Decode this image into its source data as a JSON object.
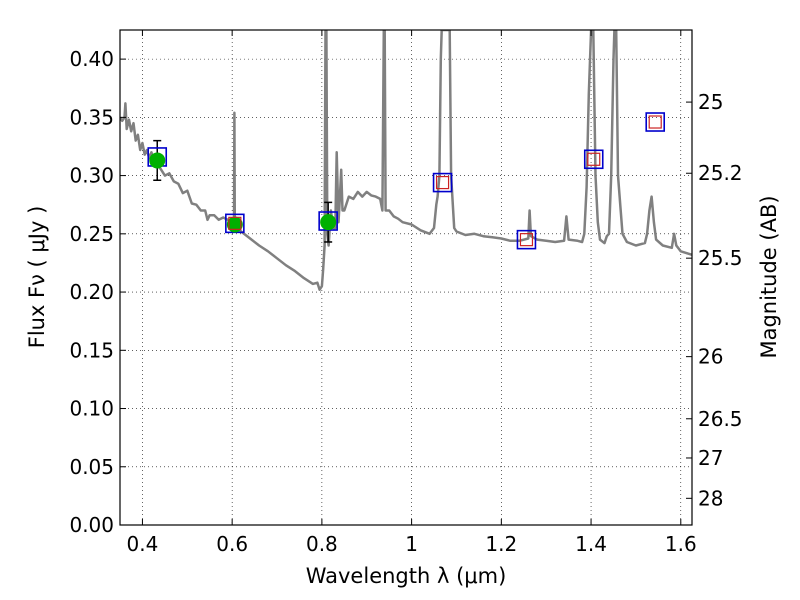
{
  "chart_data": {
    "type": "scatter",
    "xlabel": "Wavelength  λ (μm)",
    "ylabel": "Flux  Fν  ( μJy )",
    "y2label": "Magnitude (AB)",
    "xlim": [
      0.35,
      1.625
    ],
    "ylim": [
      0.0,
      0.425
    ],
    "grid": true,
    "x_ticks": [
      0.4,
      0.6,
      0.8,
      1.0,
      1.2,
      1.4,
      1.6
    ],
    "x_tick_labels": [
      "0.4",
      "0.6",
      "0.8",
      "1",
      "1.2",
      "1.4",
      "1.6"
    ],
    "y_ticks": [
      0.0,
      0.05,
      0.1,
      0.15,
      0.2,
      0.25,
      0.3,
      0.35,
      0.4
    ],
    "y_tick_labels": [
      "0.00",
      "0.05",
      "0.10",
      "0.15",
      "0.20",
      "0.25",
      "0.30",
      "0.35",
      "0.40"
    ],
    "mag_ticks": [
      25,
      25.2,
      25.5,
      26,
      26.5,
      27,
      28
    ],
    "mag_tick_labels": [
      "25",
      "25.2",
      "25.5",
      "26",
      "26.5",
      "27",
      "28"
    ],
    "colors": {
      "model": "#808080",
      "observed": "#00b000",
      "model_box": "#0000cc",
      "synthetic": "#cc2222"
    },
    "model_sed": [
      [
        0.35,
        0.35
      ],
      [
        0.355,
        0.347
      ],
      [
        0.36,
        0.35
      ],
      [
        0.362,
        0.362
      ],
      [
        0.365,
        0.34
      ],
      [
        0.37,
        0.348
      ],
      [
        0.375,
        0.338
      ],
      [
        0.38,
        0.345
      ],
      [
        0.385,
        0.33
      ],
      [
        0.39,
        0.335
      ],
      [
        0.395,
        0.322
      ],
      [
        0.4,
        0.328
      ],
      [
        0.405,
        0.318
      ],
      [
        0.41,
        0.322
      ],
      [
        0.415,
        0.315
      ],
      [
        0.42,
        0.32
      ],
      [
        0.43,
        0.31
      ],
      [
        0.44,
        0.306
      ],
      [
        0.45,
        0.3
      ],
      [
        0.46,
        0.302
      ],
      [
        0.47,
        0.295
      ],
      [
        0.48,
        0.293
      ],
      [
        0.49,
        0.285
      ],
      [
        0.5,
        0.287
      ],
      [
        0.51,
        0.276
      ],
      [
        0.52,
        0.275
      ],
      [
        0.53,
        0.27
      ],
      [
        0.54,
        0.27
      ],
      [
        0.545,
        0.262
      ],
      [
        0.55,
        0.266
      ],
      [
        0.56,
        0.266
      ],
      [
        0.57,
        0.262
      ],
      [
        0.58,
        0.264
      ],
      [
        0.59,
        0.262
      ],
      [
        0.6,
        0.26
      ],
      [
        0.604,
        0.258
      ],
      [
        0.605,
        0.354
      ],
      [
        0.606,
        0.258
      ],
      [
        0.61,
        0.256
      ],
      [
        0.62,
        0.252
      ],
      [
        0.64,
        0.246
      ],
      [
        0.66,
        0.24
      ],
      [
        0.68,
        0.235
      ],
      [
        0.7,
        0.229
      ],
      [
        0.72,
        0.223
      ],
      [
        0.74,
        0.218
      ],
      [
        0.76,
        0.212
      ],
      [
        0.78,
        0.207
      ],
      [
        0.79,
        0.208
      ],
      [
        0.795,
        0.202
      ],
      [
        0.8,
        0.205
      ],
      [
        0.803,
        0.22
      ],
      [
        0.806,
        0.24
      ],
      [
        0.808,
        0.425
      ],
      [
        0.81,
        0.425
      ],
      [
        0.812,
        0.25
      ],
      [
        0.815,
        0.24
      ],
      [
        0.82,
        0.27
      ],
      [
        0.825,
        0.255
      ],
      [
        0.83,
        0.255
      ],
      [
        0.833,
        0.32
      ],
      [
        0.837,
        0.26
      ],
      [
        0.84,
        0.28
      ],
      [
        0.843,
        0.305
      ],
      [
        0.846,
        0.27
      ],
      [
        0.85,
        0.27
      ],
      [
        0.86,
        0.282
      ],
      [
        0.87,
        0.28
      ],
      [
        0.88,
        0.286
      ],
      [
        0.89,
        0.282
      ],
      [
        0.9,
        0.286
      ],
      [
        0.91,
        0.283
      ],
      [
        0.92,
        0.282
      ],
      [
        0.93,
        0.28
      ],
      [
        0.935,
        0.27
      ],
      [
        0.938,
        0.425
      ],
      [
        0.94,
        0.425
      ],
      [
        0.942,
        0.27
      ],
      [
        0.95,
        0.27
      ],
      [
        0.96,
        0.265
      ],
      [
        0.97,
        0.263
      ],
      [
        0.98,
        0.26
      ],
      [
        1.0,
        0.258
      ],
      [
        1.02,
        0.253
      ],
      [
        1.04,
        0.25
      ],
      [
        1.05,
        0.255
      ],
      [
        1.055,
        0.275
      ],
      [
        1.058,
        0.282
      ],
      [
        1.062,
        0.3
      ],
      [
        1.065,
        0.4
      ],
      [
        1.067,
        0.425
      ],
      [
        1.085,
        0.425
      ],
      [
        1.088,
        0.3
      ],
      [
        1.095,
        0.255
      ],
      [
        1.1,
        0.252
      ],
      [
        1.12,
        0.249
      ],
      [
        1.14,
        0.25
      ],
      [
        1.16,
        0.248
      ],
      [
        1.18,
        0.247
      ],
      [
        1.2,
        0.246
      ],
      [
        1.22,
        0.244
      ],
      [
        1.24,
        0.244
      ],
      [
        1.26,
        0.246
      ],
      [
        1.263,
        0.27
      ],
      [
        1.266,
        0.248
      ],
      [
        1.28,
        0.245
      ],
      [
        1.3,
        0.244
      ],
      [
        1.32,
        0.243
      ],
      [
        1.34,
        0.244
      ],
      [
        1.345,
        0.265
      ],
      [
        1.35,
        0.245
      ],
      [
        1.37,
        0.244
      ],
      [
        1.38,
        0.243
      ],
      [
        1.385,
        0.25
      ],
      [
        1.39,
        0.29
      ],
      [
        1.395,
        0.37
      ],
      [
        1.4,
        0.425
      ],
      [
        1.405,
        0.425
      ],
      [
        1.41,
        0.3
      ],
      [
        1.415,
        0.26
      ],
      [
        1.42,
        0.245
      ],
      [
        1.43,
        0.242
      ],
      [
        1.435,
        0.248
      ],
      [
        1.44,
        0.25
      ],
      [
        1.445,
        0.3
      ],
      [
        1.45,
        0.4
      ],
      [
        1.452,
        0.425
      ],
      [
        1.456,
        0.425
      ],
      [
        1.46,
        0.3
      ],
      [
        1.47,
        0.25
      ],
      [
        1.48,
        0.243
      ],
      [
        1.5,
        0.24
      ],
      [
        1.52,
        0.242
      ],
      [
        1.525,
        0.25
      ],
      [
        1.53,
        0.27
      ],
      [
        1.535,
        0.282
      ],
      [
        1.54,
        0.26
      ],
      [
        1.545,
        0.245
      ],
      [
        1.56,
        0.24
      ],
      [
        1.58,
        0.238
      ],
      [
        1.585,
        0.25
      ],
      [
        1.59,
        0.24
      ],
      [
        1.6,
        0.235
      ],
      [
        1.625,
        0.232
      ]
    ],
    "observed": [
      {
        "x": 0.433,
        "y": 0.313,
        "yerr": 0.017
      },
      {
        "x": 0.606,
        "y": 0.258,
        "yerr": 0.0
      },
      {
        "x": 0.814,
        "y": 0.26,
        "yerr": 0.017
      }
    ],
    "model_points": [
      {
        "x": 0.433,
        "y": 0.316
      },
      {
        "x": 0.606,
        "y": 0.259
      },
      {
        "x": 0.814,
        "y": 0.261
      },
      {
        "x": 1.069,
        "y": 0.294
      },
      {
        "x": 1.256,
        "y": 0.245
      },
      {
        "x": 1.406,
        "y": 0.314
      },
      {
        "x": 1.543,
        "y": 0.346
      }
    ],
    "synthetic_points": [
      {
        "x": 0.606,
        "y": 0.259
      },
      {
        "x": 1.069,
        "y": 0.294
      },
      {
        "x": 1.256,
        "y": 0.245
      },
      {
        "x": 1.406,
        "y": 0.314
      },
      {
        "x": 1.543,
        "y": 0.346
      }
    ]
  }
}
